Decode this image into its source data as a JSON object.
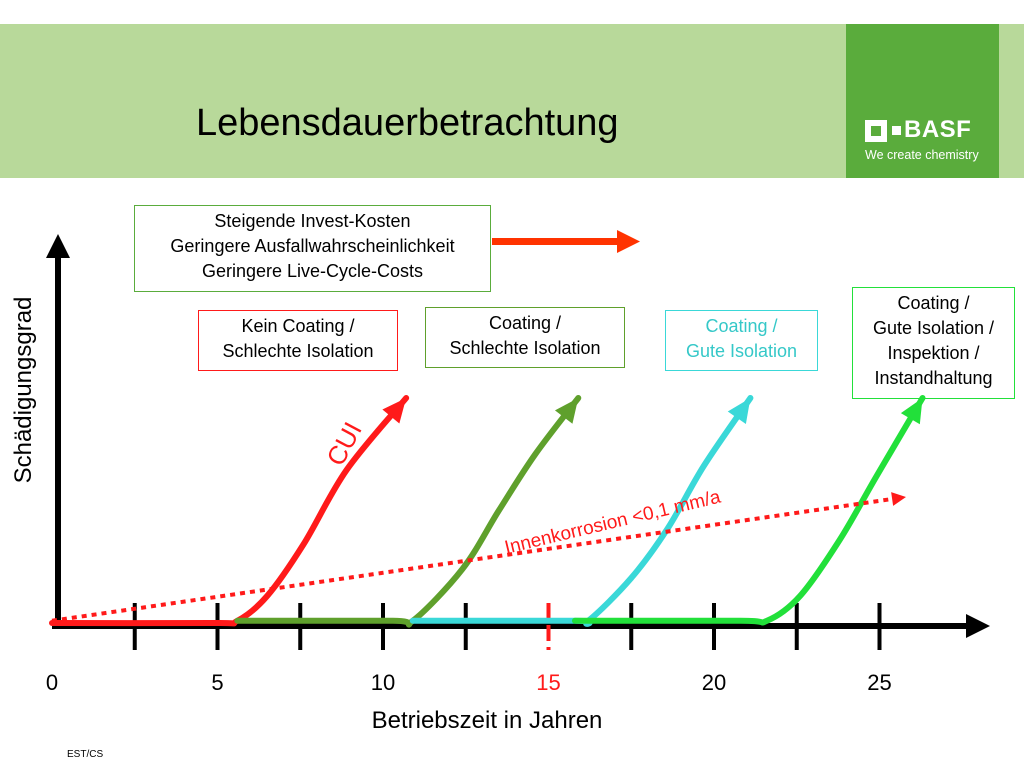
{
  "header": {
    "title": "Lebensdauerbetrachtung",
    "logo_text": "BASF",
    "logo_tagline": "We create chemistry",
    "band_color": "#b8d99a",
    "logo_color": "#5aac3c"
  },
  "info_box": {
    "lines": [
      "Steigende Invest-Kosten",
      "Geringere Ausfallwahrscheinlichkeit",
      "Geringere Live-Cycle-Costs"
    ],
    "border_color": "#5aac3c",
    "arrow_color": "#ff3300"
  },
  "scenario_boxes": [
    {
      "lines": [
        "Kein Coating /",
        "Schlechte Isolation"
      ],
      "color": "#ff1a1a"
    },
    {
      "lines": [
        "Coating /",
        "Schlechte Isolation"
      ],
      "color": "#5fa02c"
    },
    {
      "lines": [
        "Coating /",
        "Gute Isolation"
      ],
      "color": "#3ad8d8"
    },
    {
      "lines": [
        "Coating /",
        "Gute Isolation /",
        "Inspektion /",
        "Instandhaltung"
      ],
      "color": "#22e03a"
    }
  ],
  "footer": "EST/CS",
  "chart_data": {
    "type": "line",
    "xlabel": "Betriebszeit in Jahren",
    "ylabel": "Schädigungsgrad",
    "xlim": [
      0,
      28
    ],
    "ylim": [
      0,
      1
    ],
    "x_tick_labels": [
      {
        "value": 0,
        "label": "0",
        "color": "#000000"
      },
      {
        "value": 5,
        "label": "5",
        "color": "#000000"
      },
      {
        "value": 10,
        "label": "10",
        "color": "#000000"
      },
      {
        "value": 15,
        "label": "15",
        "color": "#ff1a1a"
      },
      {
        "value": 20,
        "label": "20",
        "color": "#000000"
      },
      {
        "value": 25,
        "label": "25",
        "color": "#000000"
      }
    ],
    "x_tick_marks": [
      2.5,
      5,
      7.5,
      10,
      12.5,
      17.5,
      20,
      22.5,
      25
    ],
    "highlight_tick": {
      "value": 15,
      "color": "#ff1a1a"
    },
    "series": [
      {
        "color": "#ff1a1a",
        "points": [
          [
            0,
            0
          ],
          [
            4.9,
            0
          ],
          [
            5.6,
            0.01
          ],
          [
            6.5,
            0.12
          ],
          [
            7.6,
            0.35
          ],
          [
            8.9,
            0.68
          ],
          [
            10.7,
            1.0
          ]
        ]
      },
      {
        "color": "#5fa02c",
        "points": [
          [
            5.6,
            0.01
          ],
          [
            10.3,
            0.01
          ],
          [
            10.9,
            0.01
          ],
          [
            12.4,
            0.24
          ],
          [
            13.5,
            0.5
          ],
          [
            14.6,
            0.75
          ],
          [
            15.9,
            1.0
          ]
        ]
      },
      {
        "color": "#3ad8d8",
        "points": [
          [
            10.9,
            0.01
          ],
          [
            15.8,
            0.01
          ],
          [
            16.2,
            0.01
          ],
          [
            17.5,
            0.2
          ],
          [
            18.6,
            0.42
          ],
          [
            19.7,
            0.7
          ],
          [
            21.1,
            1.0
          ]
        ]
      },
      {
        "color": "#22e03a",
        "points": [
          [
            15.8,
            0.01
          ],
          [
            20.8,
            0.01
          ],
          [
            21.6,
            0.01
          ],
          [
            22.6,
            0.12
          ],
          [
            23.8,
            0.37
          ],
          [
            24.9,
            0.65
          ],
          [
            26.3,
            1.0
          ]
        ]
      }
    ],
    "annotations": [
      {
        "text": "CUI",
        "color": "#ff1a1a"
      },
      {
        "text": "Innenkorrosion <0,1 mm/a",
        "color": "#ff1a1a",
        "line": [
          [
            0,
            0.01
          ],
          [
            25.8,
            0.56
          ]
        ]
      }
    ]
  }
}
